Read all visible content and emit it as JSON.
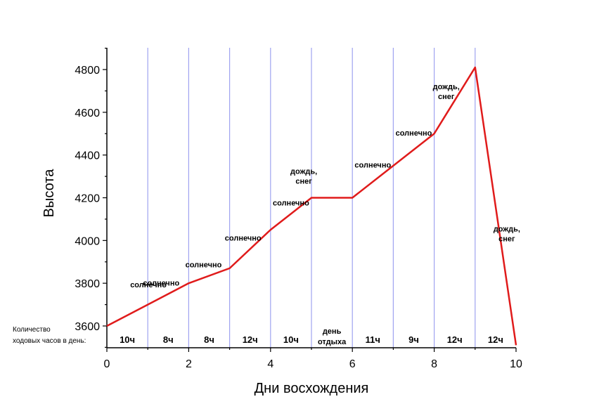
{
  "chart_data": {
    "type": "line",
    "xlabel": "Дни восхождения",
    "ylabel": "Высота",
    "xlim": [
      0,
      10
    ],
    "ylim": [
      3500,
      4900
    ],
    "x_ticks": [
      0,
      2,
      4,
      6,
      8,
      10
    ],
    "y_ticks": [
      3600,
      3800,
      4000,
      4200,
      4400,
      4600,
      4800
    ],
    "vertical_gridlines": [
      1,
      2,
      3,
      4,
      5,
      6,
      7,
      8,
      9
    ],
    "line_color": "#e01b1b",
    "grid_color": "#9fa3f0",
    "x": [
      0,
      1,
      2,
      3,
      4,
      5,
      6,
      7,
      8,
      9,
      10
    ],
    "y": [
      3600,
      3700,
      3800,
      3870,
      4050,
      4200,
      4200,
      4350,
      4500,
      4810,
      3510
    ],
    "weather": [
      {
        "day": 0,
        "lines": [
          "солнечно"
        ]
      },
      {
        "day": 1,
        "lines": [
          "солнечно"
        ]
      },
      {
        "day": 2,
        "lines": [
          "солнечно"
        ]
      },
      {
        "day": 3,
        "lines": [
          "солнечно"
        ]
      },
      {
        "day": 4,
        "lines": [
          "солнечно"
        ]
      },
      {
        "day": 5,
        "lines": [
          "дождь,",
          "снег"
        ]
      },
      {
        "day": 6,
        "lines": [
          "солнечно"
        ]
      },
      {
        "day": 7,
        "lines": [
          "солнечно"
        ]
      },
      {
        "day": 8,
        "lines": [
          "дождь,",
          "снег"
        ]
      },
      {
        "day": 9,
        "lines": [
          "дождь,",
          "снег"
        ]
      }
    ],
    "hours_label": [
      "Количество",
      "ходовых часов в день:"
    ],
    "hours": [
      {
        "day": 0,
        "lines": [
          "10ч"
        ]
      },
      {
        "day": 1,
        "lines": [
          "8ч"
        ]
      },
      {
        "day": 2,
        "lines": [
          "8ч"
        ]
      },
      {
        "day": 3,
        "lines": [
          "12ч"
        ]
      },
      {
        "day": 4,
        "lines": [
          "10ч"
        ]
      },
      {
        "day": 5,
        "lines": [
          "день",
          "отдыха"
        ]
      },
      {
        "day": 6,
        "lines": [
          "11ч"
        ]
      },
      {
        "day": 7,
        "lines": [
          "9ч"
        ]
      },
      {
        "day": 8,
        "lines": [
          "12ч"
        ]
      },
      {
        "day": 9,
        "lines": [
          "12ч"
        ]
      }
    ]
  }
}
